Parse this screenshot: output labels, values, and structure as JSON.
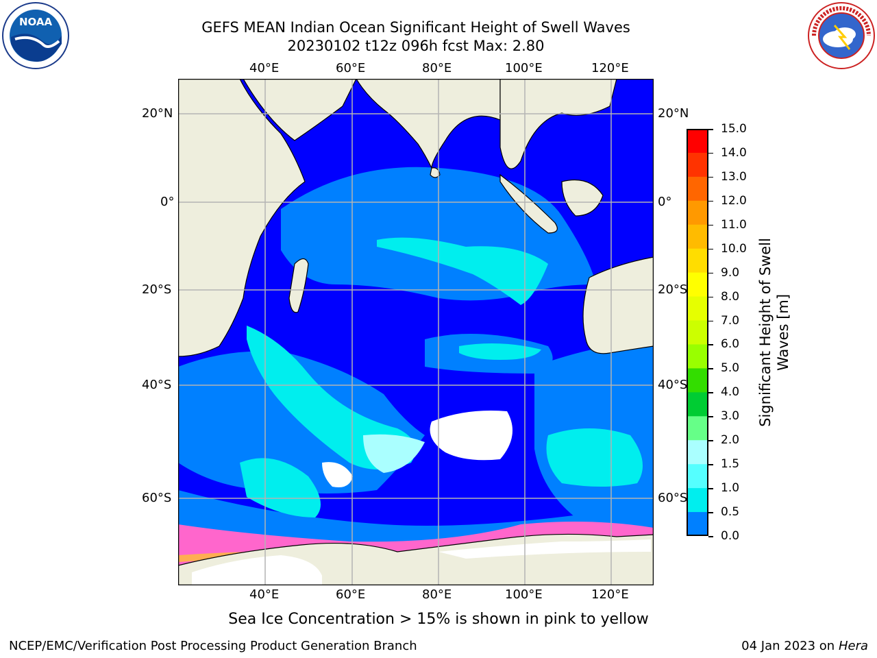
{
  "title": {
    "line1": "GEFS MEAN Indian Ocean Significant Height of Swell Waves",
    "line2": "20230102 t12z 096h fcst   Max: 2.80"
  },
  "logos": {
    "left": "NOAA",
    "right": "NATIONAL WEATHER SERVICE"
  },
  "axes": {
    "lon_labels": [
      "40°E",
      "60°E",
      "80°E",
      "100°E",
      "120°E"
    ],
    "lat_labels": [
      "20°N",
      "0°",
      "20°S",
      "40°S",
      "60°S"
    ]
  },
  "colorbar": {
    "label_line1": "Significant Height of Swell",
    "label_line2": "Waves [m]",
    "ticks": [
      "15.0",
      "14.0",
      "13.0",
      "12.0",
      "11.0",
      "10.0",
      "9.0",
      "8.0",
      "7.0",
      "6.0",
      "5.0",
      "4.0",
      "3.0",
      "2.0",
      "1.5",
      "1.0",
      "0.5",
      "0.0"
    ],
    "colors": [
      "#ff0000",
      "#ff3300",
      "#ff6600",
      "#ff9900",
      "#ffbb00",
      "#ffdd00",
      "#ffff00",
      "#e6ff00",
      "#ccff00",
      "#99ff00",
      "#33dd00",
      "#00cc33",
      "#66ff88",
      "#aaffff",
      "#55ffff",
      "#00eeee",
      "#0080ff",
      "#0000ff"
    ]
  },
  "colors": {
    "land": "#eeeedd",
    "ocean_low": "#0000ff",
    "ocean_mid": "#0080ff",
    "ocean_high": "#00eeee",
    "ice": "#ff66cc"
  },
  "note": "Sea Ice Concentration > 15% is shown in pink to yellow",
  "footer": {
    "left": "NCEP/EMC/Verification Post Processing Product Generation Branch",
    "date": "04 Jan 2023 on ",
    "host": "Hera"
  }
}
